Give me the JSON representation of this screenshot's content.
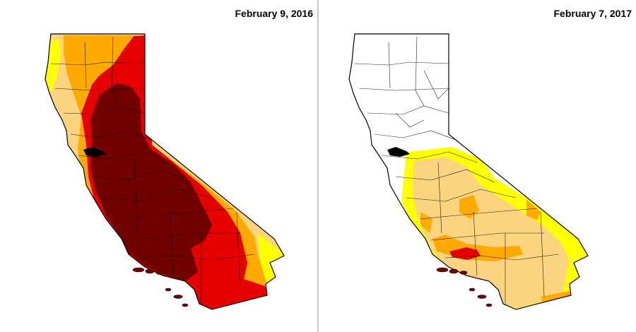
{
  "maps": [
    {
      "date": "February 9, 2016"
    },
    {
      "date": "February 7, 2017"
    }
  ],
  "colors": {
    "none": "#ffffff",
    "D0": "#ffff00",
    "D1": "#fcd37f",
    "D2": "#ffaa00",
    "D3": "#e60000",
    "D4": "#730000",
    "outline": "#000000"
  }
}
